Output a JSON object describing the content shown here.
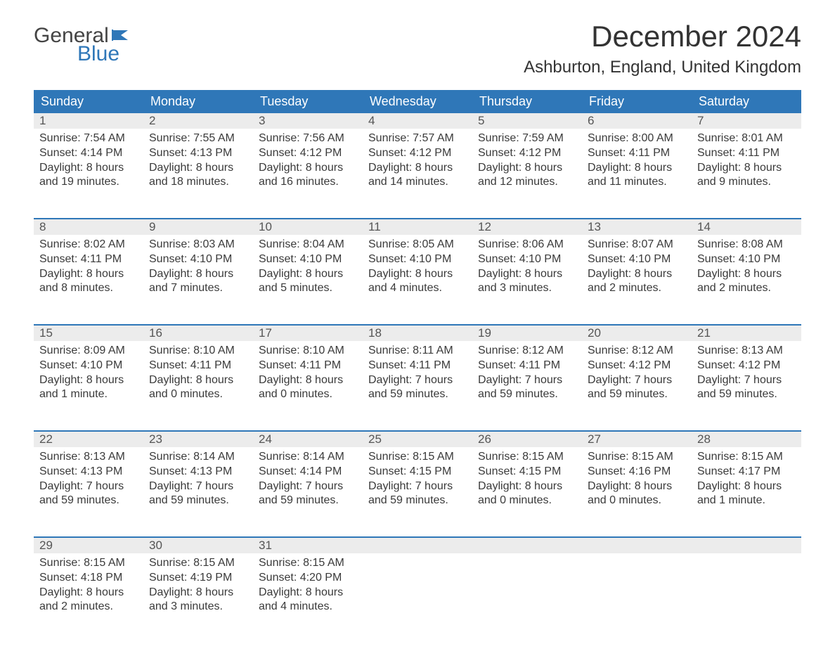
{
  "logo": {
    "word1": "General",
    "word2": "Blue"
  },
  "title": "December 2024",
  "location": "Ashburton, England, United Kingdom",
  "colors": {
    "header_bg": "#2f77b8",
    "header_text": "#ffffff",
    "daynum_bg": "#ececec",
    "row_border": "#2f77b8",
    "body_text": "#3a3a3a",
    "page_bg": "#ffffff",
    "logo_grey": "#444444",
    "logo_blue": "#2f77b8"
  },
  "layout": {
    "cols": 7,
    "week_rows": 5,
    "th_fontsize": 18,
    "daynum_fontsize": 17,
    "detail_fontsize": 16,
    "title_fontsize": 42,
    "location_fontsize": 24
  },
  "day_headers": [
    "Sunday",
    "Monday",
    "Tuesday",
    "Wednesday",
    "Thursday",
    "Friday",
    "Saturday"
  ],
  "weeks": [
    [
      {
        "n": "1",
        "sr": "Sunrise: 7:54 AM",
        "ss": "Sunset: 4:14 PM",
        "dl": "Daylight: 8 hours and 19 minutes."
      },
      {
        "n": "2",
        "sr": "Sunrise: 7:55 AM",
        "ss": "Sunset: 4:13 PM",
        "dl": "Daylight: 8 hours and 18 minutes."
      },
      {
        "n": "3",
        "sr": "Sunrise: 7:56 AM",
        "ss": "Sunset: 4:12 PM",
        "dl": "Daylight: 8 hours and 16 minutes."
      },
      {
        "n": "4",
        "sr": "Sunrise: 7:57 AM",
        "ss": "Sunset: 4:12 PM",
        "dl": "Daylight: 8 hours and 14 minutes."
      },
      {
        "n": "5",
        "sr": "Sunrise: 7:59 AM",
        "ss": "Sunset: 4:12 PM",
        "dl": "Daylight: 8 hours and 12 minutes."
      },
      {
        "n": "6",
        "sr": "Sunrise: 8:00 AM",
        "ss": "Sunset: 4:11 PM",
        "dl": "Daylight: 8 hours and 11 minutes."
      },
      {
        "n": "7",
        "sr": "Sunrise: 8:01 AM",
        "ss": "Sunset: 4:11 PM",
        "dl": "Daylight: 8 hours and 9 minutes."
      }
    ],
    [
      {
        "n": "8",
        "sr": "Sunrise: 8:02 AM",
        "ss": "Sunset: 4:11 PM",
        "dl": "Daylight: 8 hours and 8 minutes."
      },
      {
        "n": "9",
        "sr": "Sunrise: 8:03 AM",
        "ss": "Sunset: 4:10 PM",
        "dl": "Daylight: 8 hours and 7 minutes."
      },
      {
        "n": "10",
        "sr": "Sunrise: 8:04 AM",
        "ss": "Sunset: 4:10 PM",
        "dl": "Daylight: 8 hours and 5 minutes."
      },
      {
        "n": "11",
        "sr": "Sunrise: 8:05 AM",
        "ss": "Sunset: 4:10 PM",
        "dl": "Daylight: 8 hours and 4 minutes."
      },
      {
        "n": "12",
        "sr": "Sunrise: 8:06 AM",
        "ss": "Sunset: 4:10 PM",
        "dl": "Daylight: 8 hours and 3 minutes."
      },
      {
        "n": "13",
        "sr": "Sunrise: 8:07 AM",
        "ss": "Sunset: 4:10 PM",
        "dl": "Daylight: 8 hours and 2 minutes."
      },
      {
        "n": "14",
        "sr": "Sunrise: 8:08 AM",
        "ss": "Sunset: 4:10 PM",
        "dl": "Daylight: 8 hours and 2 minutes."
      }
    ],
    [
      {
        "n": "15",
        "sr": "Sunrise: 8:09 AM",
        "ss": "Sunset: 4:10 PM",
        "dl": "Daylight: 8 hours and 1 minute."
      },
      {
        "n": "16",
        "sr": "Sunrise: 8:10 AM",
        "ss": "Sunset: 4:11 PM",
        "dl": "Daylight: 8 hours and 0 minutes."
      },
      {
        "n": "17",
        "sr": "Sunrise: 8:10 AM",
        "ss": "Sunset: 4:11 PM",
        "dl": "Daylight: 8 hours and 0 minutes."
      },
      {
        "n": "18",
        "sr": "Sunrise: 8:11 AM",
        "ss": "Sunset: 4:11 PM",
        "dl": "Daylight: 7 hours and 59 minutes."
      },
      {
        "n": "19",
        "sr": "Sunrise: 8:12 AM",
        "ss": "Sunset: 4:11 PM",
        "dl": "Daylight: 7 hours and 59 minutes."
      },
      {
        "n": "20",
        "sr": "Sunrise: 8:12 AM",
        "ss": "Sunset: 4:12 PM",
        "dl": "Daylight: 7 hours and 59 minutes."
      },
      {
        "n": "21",
        "sr": "Sunrise: 8:13 AM",
        "ss": "Sunset: 4:12 PM",
        "dl": "Daylight: 7 hours and 59 minutes."
      }
    ],
    [
      {
        "n": "22",
        "sr": "Sunrise: 8:13 AM",
        "ss": "Sunset: 4:13 PM",
        "dl": "Daylight: 7 hours and 59 minutes."
      },
      {
        "n": "23",
        "sr": "Sunrise: 8:14 AM",
        "ss": "Sunset: 4:13 PM",
        "dl": "Daylight: 7 hours and 59 minutes."
      },
      {
        "n": "24",
        "sr": "Sunrise: 8:14 AM",
        "ss": "Sunset: 4:14 PM",
        "dl": "Daylight: 7 hours and 59 minutes."
      },
      {
        "n": "25",
        "sr": "Sunrise: 8:15 AM",
        "ss": "Sunset: 4:15 PM",
        "dl": "Daylight: 7 hours and 59 minutes."
      },
      {
        "n": "26",
        "sr": "Sunrise: 8:15 AM",
        "ss": "Sunset: 4:15 PM",
        "dl": "Daylight: 8 hours and 0 minutes."
      },
      {
        "n": "27",
        "sr": "Sunrise: 8:15 AM",
        "ss": "Sunset: 4:16 PM",
        "dl": "Daylight: 8 hours and 0 minutes."
      },
      {
        "n": "28",
        "sr": "Sunrise: 8:15 AM",
        "ss": "Sunset: 4:17 PM",
        "dl": "Daylight: 8 hours and 1 minute."
      }
    ],
    [
      {
        "n": "29",
        "sr": "Sunrise: 8:15 AM",
        "ss": "Sunset: 4:18 PM",
        "dl": "Daylight: 8 hours and 2 minutes."
      },
      {
        "n": "30",
        "sr": "Sunrise: 8:15 AM",
        "ss": "Sunset: 4:19 PM",
        "dl": "Daylight: 8 hours and 3 minutes."
      },
      {
        "n": "31",
        "sr": "Sunrise: 8:15 AM",
        "ss": "Sunset: 4:20 PM",
        "dl": "Daylight: 8 hours and 4 minutes."
      },
      null,
      null,
      null,
      null
    ]
  ]
}
